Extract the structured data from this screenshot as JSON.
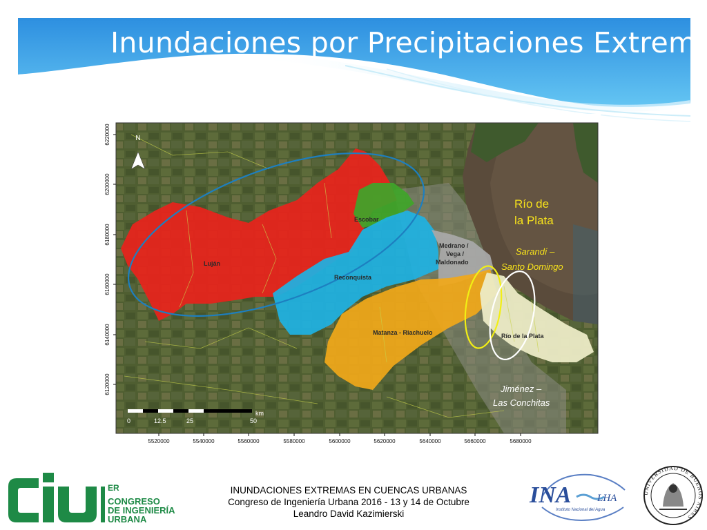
{
  "slide": {
    "title": "Inundaciones por Precipitaciones Extremas"
  },
  "map": {
    "y_axis_labels": [
      "6220000",
      "6200000",
      "6180000",
      "6160000",
      "6140000",
      "6120000"
    ],
    "x_axis_labels": [
      "5520000",
      "5540000",
      "5560000",
      "5580000",
      "5600000",
      "5620000",
      "5640000",
      "5660000",
      "5680000"
    ],
    "north_label": "N",
    "scale_bar": {
      "unit": "km",
      "labels": [
        "0",
        "12.5",
        "25",
        "50"
      ]
    },
    "basins": [
      {
        "name": "Luján",
        "color": "#e8231c"
      },
      {
        "name": "Escobar",
        "color": "#3fa52a"
      },
      {
        "name": "Reconquista",
        "color": "#1fb2e2"
      },
      {
        "name": "Medrano / Vega / Maldonado",
        "lines": [
          "Medrano /",
          "Vega /",
          "Maldonado"
        ],
        "color": "#a9a9a9"
      },
      {
        "name": "Matanza - Riachuelo",
        "color": "#f0a81a"
      },
      {
        "name": "Río de la Plata",
        "color": "#ecebc6"
      }
    ],
    "annotations": {
      "river_label": [
        "Río de",
        "la Plata"
      ],
      "sarandi": [
        "Sarandí –",
        "Santo Domingo"
      ],
      "jimenez": [
        "Jiménez –",
        "Las Conchitas"
      ]
    },
    "colors": {
      "annotation_yellow": "#f7e21b",
      "ellipse_blue": "#1d7fc0",
      "ellipse_white": "#ffffff",
      "ellipse_yellow": "#f2ef14"
    }
  },
  "footer": {
    "line1": "INUNDACIONES EXTREMAS EN CUENCAS URBANAS",
    "line2": "Congreso de Ingeniería Urbana 2016 - 13 y 14 de Octubre",
    "line3": "Leandro David Kazimierski"
  },
  "logos": {
    "ciu": {
      "mark": "ciu",
      "superscript": "ER",
      "lines": [
        "CONGRESO",
        "DE INGENIERÍA",
        "URBANA"
      ],
      "color": "#1e8a46"
    },
    "ina": {
      "mark": "INA",
      "sub": "LHA",
      "caption": "Instituto Nacional del Agua",
      "color": "#2a4e9b"
    },
    "uba": {
      "ring_text": "UNIVERSIDAD DE BUENOS AIRES"
    }
  }
}
